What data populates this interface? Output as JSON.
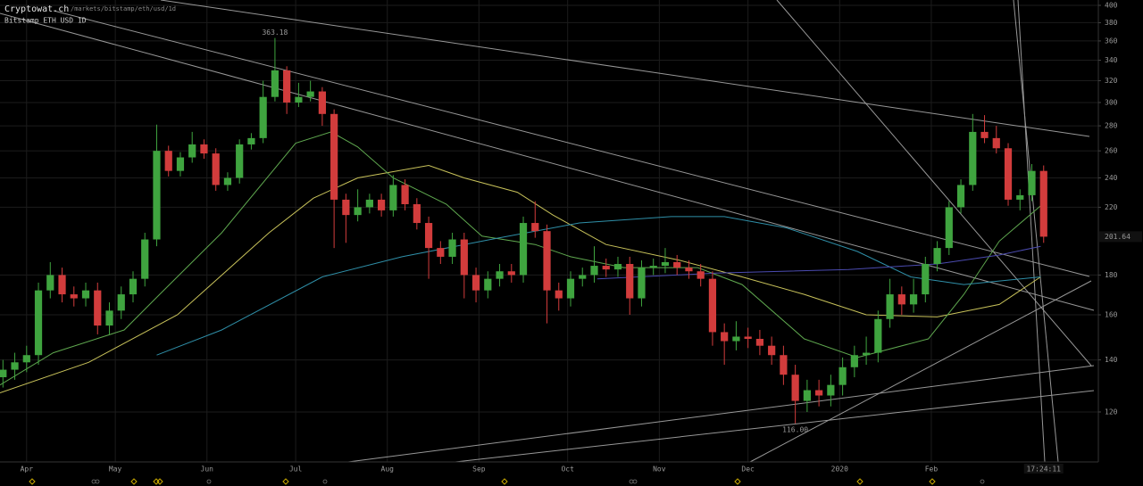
{
  "chart_data": {
    "type": "candlestick",
    "site": "Cryptowat.ch",
    "path": "/markets/bitstamp/eth/usd/1d",
    "title": "Bitstamp ETH USD 1D",
    "countdown": "17:24:11",
    "log_scale": true,
    "grid": true,
    "up_color": "#3fa43f",
    "down_color": "#d23c3c",
    "xlim": [
      -9,
      362.5
    ],
    "ylim": [
      103.5,
      406.4
    ],
    "xticks": [
      {
        "value": 0,
        "label": "Apr"
      },
      {
        "value": 30,
        "label": "May"
      },
      {
        "value": 61,
        "label": "Jun"
      },
      {
        "value": 91,
        "label": "Jul"
      },
      {
        "value": 122,
        "label": "Aug"
      },
      {
        "value": 153,
        "label": "Sep"
      },
      {
        "value": 183,
        "label": "Oct"
      },
      {
        "value": 214,
        "label": "Nov"
      },
      {
        "value": 244,
        "label": "Dec"
      },
      {
        "value": 275,
        "label": "2020"
      },
      {
        "value": 306,
        "label": "Feb"
      }
    ],
    "yticks": [
      120,
      140,
      160,
      180,
      220,
      240,
      260,
      280,
      300,
      320,
      340,
      360,
      380,
      400
    ],
    "x": [
      -8,
      -4,
      0,
      4,
      8,
      12,
      16,
      20,
      24,
      28,
      32,
      36,
      40,
      44,
      48,
      52,
      56,
      60,
      64,
      68,
      72,
      76,
      80,
      84,
      88,
      92,
      96,
      100,
      104,
      108,
      112,
      116,
      120,
      124,
      128,
      132,
      136,
      140,
      144,
      148,
      152,
      156,
      160,
      164,
      168,
      172,
      176,
      180,
      184,
      188,
      192,
      196,
      200,
      204,
      208,
      212,
      216,
      220,
      224,
      228,
      232,
      236,
      240,
      244,
      248,
      252,
      256,
      260,
      264,
      268,
      272,
      276,
      280,
      284,
      288,
      292,
      296,
      300,
      304,
      308,
      312,
      316,
      320,
      324,
      328,
      332,
      336,
      340,
      344
    ],
    "open": [
      133,
      136,
      139,
      142,
      172,
      180,
      170,
      168,
      172,
      155,
      162,
      170,
      178,
      200,
      260,
      245,
      255,
      265,
      258,
      235,
      240,
      265,
      270,
      305,
      330,
      300,
      305,
      310,
      290,
      225,
      215,
      220,
      225,
      218,
      235,
      222,
      210,
      195,
      190,
      200,
      180,
      172,
      178,
      182,
      180,
      210,
      205,
      172,
      168,
      178,
      180,
      185,
      183,
      186,
      168,
      184,
      185,
      187,
      184,
      182,
      178,
      152,
      148,
      150,
      149,
      146,
      142,
      134,
      124,
      128,
      126,
      130,
      137,
      142,
      143,
      158,
      170,
      165,
      170,
      186,
      195,
      220,
      235,
      275,
      270,
      262,
      225,
      228,
      245
    ],
    "high": [
      140,
      143,
      146,
      176,
      187,
      184,
      174,
      176,
      176,
      166,
      174,
      182,
      204,
      281,
      264,
      259,
      275,
      269,
      262,
      244,
      269,
      274,
      320,
      363.18,
      334,
      318,
      320,
      314,
      294,
      229,
      232,
      229,
      229,
      242,
      239,
      226,
      214,
      199,
      204,
      204,
      184,
      182,
      186,
      186,
      214,
      224,
      209,
      176,
      182,
      184,
      196,
      189,
      190,
      190,
      188,
      189,
      195,
      191,
      188,
      186,
      182,
      156,
      157,
      154,
      153,
      150,
      146,
      138,
      132,
      132,
      134,
      141,
      146,
      150,
      162,
      178,
      174,
      178,
      190,
      199,
      224,
      239,
      290,
      289,
      280,
      266,
      232,
      250,
      249
    ],
    "low": [
      129,
      132,
      135,
      138,
      168,
      166,
      164,
      164,
      151,
      151,
      158,
      166,
      174,
      196,
      241,
      241,
      251,
      254,
      231,
      231,
      236,
      261,
      266,
      301,
      290,
      296,
      301,
      280,
      195,
      198,
      211,
      216,
      214,
      214,
      218,
      206,
      178,
      186,
      186,
      168,
      166,
      168,
      174,
      176,
      176,
      201,
      156,
      162,
      164,
      174,
      176,
      179,
      179,
      160,
      164,
      180,
      181,
      180,
      178,
      174,
      146,
      138,
      144,
      145,
      142,
      138,
      130,
      116,
      120,
      122,
      122,
      126,
      133,
      138,
      139,
      154,
      160,
      161,
      166,
      182,
      191,
      216,
      231,
      266,
      258,
      221,
      218,
      224,
      198
    ],
    "close": [
      136,
      139,
      142,
      172,
      180,
      170,
      168,
      172,
      155,
      162,
      170,
      178,
      200,
      260,
      245,
      255,
      265,
      258,
      235,
      240,
      265,
      270,
      305,
      330,
      300,
      305,
      310,
      290,
      225,
      215,
      220,
      225,
      218,
      235,
      222,
      210,
      195,
      190,
      200,
      180,
      172,
      178,
      182,
      180,
      210,
      205,
      172,
      168,
      178,
      180,
      185,
      183,
      186,
      168,
      184,
      185,
      187,
      184,
      182,
      178,
      152,
      148,
      150,
      149,
      146,
      142,
      134,
      124,
      128,
      126,
      130,
      137,
      142,
      143,
      158,
      170,
      165,
      170,
      186,
      195,
      220,
      235,
      275,
      270,
      262,
      225,
      228,
      245,
      201.64
    ],
    "extreme_labels": [
      {
        "x": 84,
        "value": 363.18,
        "label": "363.18"
      },
      {
        "x": 260,
        "value": 116,
        "label": "116.00"
      }
    ],
    "lines": [
      {
        "color": "#c8c25a",
        "x": [
          -9,
          21,
          51,
          82,
          97,
          112,
          136,
          148,
          166,
          178,
          196,
          221,
          242,
          263,
          284,
          308,
          329,
          343
        ],
        "values": [
          127,
          139,
          160,
          204,
          226,
          240,
          249,
          240,
          230,
          215,
          197,
          188,
          179,
          170,
          160,
          159,
          165,
          179
        ]
      },
      {
        "color": "#5fa84f",
        "x": [
          -9,
          9,
          33,
          45,
          66,
          91,
          103,
          112,
          124,
          142,
          154,
          172,
          184,
          202,
          227,
          242,
          263,
          281,
          305,
          317,
          329,
          343
        ],
        "values": [
          130,
          143,
          153,
          170,
          204,
          266,
          275,
          263,
          240,
          222,
          202,
          197,
          190,
          184,
          184,
          175,
          149,
          141,
          149,
          170,
          199,
          221
        ]
      },
      {
        "color": "#2f8fa8",
        "x": [
          44,
          66,
          100,
          127,
          157,
          187,
          218,
          236,
          257,
          281,
          299,
          317,
          343
        ],
        "values": [
          142,
          153,
          179,
          190,
          200,
          210,
          214,
          214,
          207,
          193,
          179,
          175,
          179
        ]
      },
      {
        "color": "#4b4bb0",
        "x": [
          193,
          233,
          278,
          308,
          329,
          343
        ],
        "values": [
          178,
          181,
          183,
          186,
          191,
          196
        ]
      }
    ]
  }
}
